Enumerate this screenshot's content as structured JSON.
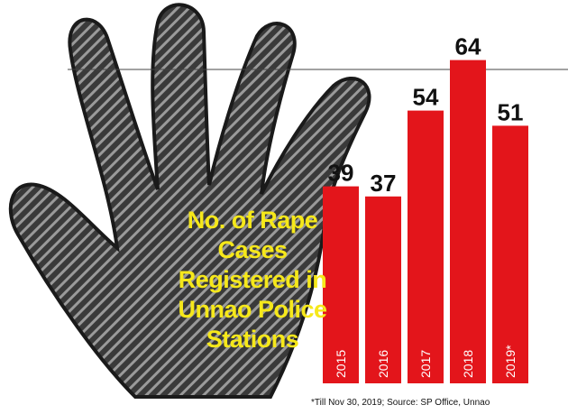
{
  "chart_data": {
    "type": "bar",
    "title": "No. of Rape Cases Registered in Unnao Police Stations",
    "categories": [
      "2015",
      "2016",
      "2017",
      "2018",
      "2019*"
    ],
    "values": [
      39,
      37,
      54,
      64,
      51
    ],
    "color": "#e3151b",
    "footnote": "*Till Nov 30, 2019; Source: SP Office, Unnao"
  }
}
